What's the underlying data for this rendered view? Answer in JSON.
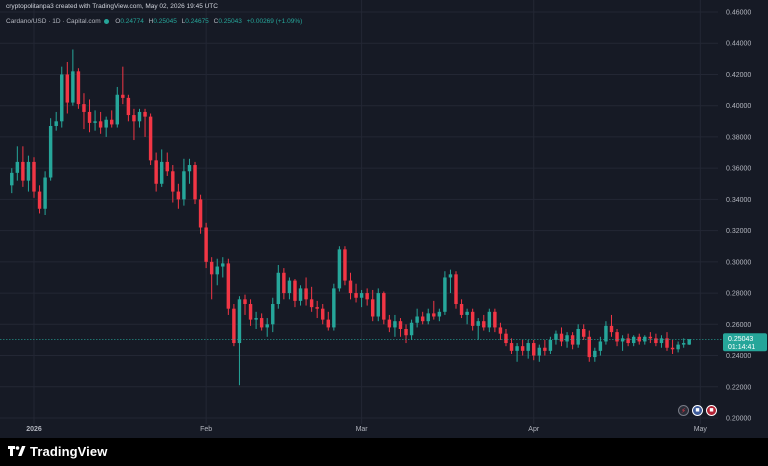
{
  "header": {
    "created_by": "cryptopolitanpa3 created with TradingView.com, May 02, 2026 19:45 UTC"
  },
  "symbol": {
    "name": "Cardano/USD · 1D · Capital.com",
    "open_label": "O",
    "open": "0.24774",
    "high_label": "H",
    "high": "0.25045",
    "low_label": "L",
    "low": "0.24675",
    "close_label": "C",
    "close": "0.25043",
    "change": "+0.00269 (+1.09%)"
  },
  "price_tag": {
    "price": "0.25043",
    "countdown": "01:14:41"
  },
  "footer": {
    "brand": "TradingView"
  },
  "colors": {
    "up": "#26a69a",
    "down": "#f23645",
    "background": "#161a25",
    "grid": "#232734"
  },
  "chart_data": {
    "type": "candlestick",
    "y_axis_labels": [
      "0.46000",
      "0.44000",
      "0.42000",
      "0.40000",
      "0.38000",
      "0.36000",
      "0.34000",
      "0.32000",
      "0.30000",
      "0.28000",
      "0.26000",
      "0.24000",
      "0.22000",
      "0.20000"
    ],
    "ylim": [
      0.2,
      0.46
    ],
    "y_axis_position": "right",
    "x_axis_labels": [
      {
        "label": "2026",
        "bold": true,
        "day": 4
      },
      {
        "label": "Feb",
        "bold": false,
        "day": 35
      },
      {
        "label": "Mar",
        "bold": false,
        "day": 63
      },
      {
        "label": "Apr",
        "bold": false,
        "day": 94
      },
      {
        "label": "May",
        "bold": false,
        "day": 124
      }
    ],
    "grid": true,
    "candles": [
      {
        "o": 0.349,
        "h": 0.36,
        "l": 0.344,
        "c": 0.357
      },
      {
        "o": 0.357,
        "h": 0.374,
        "l": 0.352,
        "c": 0.364
      },
      {
        "o": 0.364,
        "h": 0.374,
        "l": 0.348,
        "c": 0.352
      },
      {
        "o": 0.352,
        "h": 0.368,
        "l": 0.345,
        "c": 0.364
      },
      {
        "o": 0.364,
        "h": 0.367,
        "l": 0.341,
        "c": 0.345
      },
      {
        "o": 0.345,
        "h": 0.349,
        "l": 0.331,
        "c": 0.334
      },
      {
        "o": 0.334,
        "h": 0.358,
        "l": 0.33,
        "c": 0.354
      },
      {
        "o": 0.354,
        "h": 0.392,
        "l": 0.352,
        "c": 0.387
      },
      {
        "o": 0.387,
        "h": 0.396,
        "l": 0.384,
        "c": 0.39
      },
      {
        "o": 0.39,
        "h": 0.425,
        "l": 0.386,
        "c": 0.42
      },
      {
        "o": 0.42,
        "h": 0.428,
        "l": 0.395,
        "c": 0.402
      },
      {
        "o": 0.402,
        "h": 0.436,
        "l": 0.4,
        "c": 0.422
      },
      {
        "o": 0.422,
        "h": 0.424,
        "l": 0.398,
        "c": 0.401
      },
      {
        "o": 0.401,
        "h": 0.408,
        "l": 0.385,
        "c": 0.396
      },
      {
        "o": 0.396,
        "h": 0.404,
        "l": 0.383,
        "c": 0.389
      },
      {
        "o": 0.389,
        "h": 0.397,
        "l": 0.384,
        "c": 0.39
      },
      {
        "o": 0.39,
        "h": 0.396,
        "l": 0.382,
        "c": 0.386
      },
      {
        "o": 0.386,
        "h": 0.393,
        "l": 0.38,
        "c": 0.391
      },
      {
        "o": 0.391,
        "h": 0.397,
        "l": 0.386,
        "c": 0.388
      },
      {
        "o": 0.388,
        "h": 0.412,
        "l": 0.386,
        "c": 0.407
      },
      {
        "o": 0.407,
        "h": 0.425,
        "l": 0.401,
        "c": 0.405
      },
      {
        "o": 0.405,
        "h": 0.407,
        "l": 0.39,
        "c": 0.394
      },
      {
        "o": 0.394,
        "h": 0.398,
        "l": 0.378,
        "c": 0.39
      },
      {
        "o": 0.39,
        "h": 0.398,
        "l": 0.386,
        "c": 0.396
      },
      {
        "o": 0.396,
        "h": 0.398,
        "l": 0.38,
        "c": 0.393
      },
      {
        "o": 0.393,
        "h": 0.395,
        "l": 0.362,
        "c": 0.365
      },
      {
        "o": 0.365,
        "h": 0.37,
        "l": 0.345,
        "c": 0.35
      },
      {
        "o": 0.35,
        "h": 0.372,
        "l": 0.348,
        "c": 0.364
      },
      {
        "o": 0.364,
        "h": 0.37,
        "l": 0.355,
        "c": 0.358
      },
      {
        "o": 0.358,
        "h": 0.362,
        "l": 0.338,
        "c": 0.345
      },
      {
        "o": 0.345,
        "h": 0.35,
        "l": 0.334,
        "c": 0.34
      },
      {
        "o": 0.34,
        "h": 0.366,
        "l": 0.336,
        "c": 0.358
      },
      {
        "o": 0.358,
        "h": 0.366,
        "l": 0.35,
        "c": 0.362
      },
      {
        "o": 0.362,
        "h": 0.364,
        "l": 0.337,
        "c": 0.34
      },
      {
        "o": 0.34,
        "h": 0.343,
        "l": 0.318,
        "c": 0.322
      },
      {
        "o": 0.322,
        "h": 0.325,
        "l": 0.296,
        "c": 0.3
      },
      {
        "o": 0.3,
        "h": 0.303,
        "l": 0.276,
        "c": 0.292
      },
      {
        "o": 0.292,
        "h": 0.302,
        "l": 0.285,
        "c": 0.297
      },
      {
        "o": 0.297,
        "h": 0.303,
        "l": 0.29,
        "c": 0.299
      },
      {
        "o": 0.299,
        "h": 0.302,
        "l": 0.266,
        "c": 0.27
      },
      {
        "o": 0.27,
        "h": 0.273,
        "l": 0.246,
        "c": 0.248
      },
      {
        "o": 0.248,
        "h": 0.278,
        "l": 0.221,
        "c": 0.276
      },
      {
        "o": 0.276,
        "h": 0.279,
        "l": 0.266,
        "c": 0.273
      },
      {
        "o": 0.273,
        "h": 0.276,
        "l": 0.259,
        "c": 0.263
      },
      {
        "o": 0.263,
        "h": 0.268,
        "l": 0.257,
        "c": 0.264
      },
      {
        "o": 0.264,
        "h": 0.267,
        "l": 0.256,
        "c": 0.258
      },
      {
        "o": 0.258,
        "h": 0.264,
        "l": 0.252,
        "c": 0.26
      },
      {
        "o": 0.26,
        "h": 0.277,
        "l": 0.255,
        "c": 0.273
      },
      {
        "o": 0.273,
        "h": 0.298,
        "l": 0.27,
        "c": 0.293
      },
      {
        "o": 0.293,
        "h": 0.296,
        "l": 0.276,
        "c": 0.28
      },
      {
        "o": 0.28,
        "h": 0.29,
        "l": 0.276,
        "c": 0.288
      },
      {
        "o": 0.288,
        "h": 0.289,
        "l": 0.271,
        "c": 0.275
      },
      {
        "o": 0.275,
        "h": 0.285,
        "l": 0.272,
        "c": 0.283
      },
      {
        "o": 0.283,
        "h": 0.29,
        "l": 0.272,
        "c": 0.276
      },
      {
        "o": 0.276,
        "h": 0.284,
        "l": 0.268,
        "c": 0.271
      },
      {
        "o": 0.271,
        "h": 0.275,
        "l": 0.264,
        "c": 0.27
      },
      {
        "o": 0.27,
        "h": 0.273,
        "l": 0.26,
        "c": 0.263
      },
      {
        "o": 0.263,
        "h": 0.268,
        "l": 0.256,
        "c": 0.258
      },
      {
        "o": 0.258,
        "h": 0.286,
        "l": 0.256,
        "c": 0.283
      },
      {
        "o": 0.283,
        "h": 0.31,
        "l": 0.281,
        "c": 0.308
      },
      {
        "o": 0.308,
        "h": 0.31,
        "l": 0.285,
        "c": 0.288
      },
      {
        "o": 0.288,
        "h": 0.293,
        "l": 0.276,
        "c": 0.28
      },
      {
        "o": 0.28,
        "h": 0.286,
        "l": 0.274,
        "c": 0.277
      },
      {
        "o": 0.277,
        "h": 0.282,
        "l": 0.271,
        "c": 0.28
      },
      {
        "o": 0.28,
        "h": 0.283,
        "l": 0.272,
        "c": 0.276
      },
      {
        "o": 0.276,
        "h": 0.282,
        "l": 0.262,
        "c": 0.265
      },
      {
        "o": 0.265,
        "h": 0.283,
        "l": 0.262,
        "c": 0.28
      },
      {
        "o": 0.28,
        "h": 0.281,
        "l": 0.26,
        "c": 0.263
      },
      {
        "o": 0.263,
        "h": 0.266,
        "l": 0.255,
        "c": 0.258
      },
      {
        "o": 0.258,
        "h": 0.266,
        "l": 0.252,
        "c": 0.262
      },
      {
        "o": 0.262,
        "h": 0.264,
        "l": 0.252,
        "c": 0.257
      },
      {
        "o": 0.257,
        "h": 0.26,
        "l": 0.248,
        "c": 0.253
      },
      {
        "o": 0.253,
        "h": 0.263,
        "l": 0.25,
        "c": 0.261
      },
      {
        "o": 0.261,
        "h": 0.27,
        "l": 0.258,
        "c": 0.265
      },
      {
        "o": 0.265,
        "h": 0.268,
        "l": 0.26,
        "c": 0.262
      },
      {
        "o": 0.262,
        "h": 0.27,
        "l": 0.26,
        "c": 0.267
      },
      {
        "o": 0.267,
        "h": 0.275,
        "l": 0.263,
        "c": 0.265
      },
      {
        "o": 0.265,
        "h": 0.27,
        "l": 0.262,
        "c": 0.268
      },
      {
        "o": 0.268,
        "h": 0.294,
        "l": 0.266,
        "c": 0.29
      },
      {
        "o": 0.29,
        "h": 0.295,
        "l": 0.28,
        "c": 0.292
      },
      {
        "o": 0.292,
        "h": 0.294,
        "l": 0.27,
        "c": 0.273
      },
      {
        "o": 0.273,
        "h": 0.276,
        "l": 0.264,
        "c": 0.266
      },
      {
        "o": 0.266,
        "h": 0.27,
        "l": 0.26,
        "c": 0.268
      },
      {
        "o": 0.268,
        "h": 0.27,
        "l": 0.256,
        "c": 0.259
      },
      {
        "o": 0.259,
        "h": 0.264,
        "l": 0.25,
        "c": 0.262
      },
      {
        "o": 0.262,
        "h": 0.266,
        "l": 0.256,
        "c": 0.258
      },
      {
        "o": 0.258,
        "h": 0.27,
        "l": 0.255,
        "c": 0.268
      },
      {
        "o": 0.268,
        "h": 0.27,
        "l": 0.255,
        "c": 0.258
      },
      {
        "o": 0.258,
        "h": 0.261,
        "l": 0.25,
        "c": 0.254
      },
      {
        "o": 0.254,
        "h": 0.257,
        "l": 0.246,
        "c": 0.248
      },
      {
        "o": 0.248,
        "h": 0.251,
        "l": 0.241,
        "c": 0.243
      },
      {
        "o": 0.243,
        "h": 0.248,
        "l": 0.236,
        "c": 0.246
      },
      {
        "o": 0.246,
        "h": 0.25,
        "l": 0.24,
        "c": 0.243
      },
      {
        "o": 0.243,
        "h": 0.25,
        "l": 0.238,
        "c": 0.248
      },
      {
        "o": 0.248,
        "h": 0.25,
        "l": 0.237,
        "c": 0.24
      },
      {
        "o": 0.24,
        "h": 0.247,
        "l": 0.236,
        "c": 0.245
      },
      {
        "o": 0.245,
        "h": 0.25,
        "l": 0.24,
        "c": 0.243
      },
      {
        "o": 0.243,
        "h": 0.252,
        "l": 0.241,
        "c": 0.25
      },
      {
        "o": 0.25,
        "h": 0.256,
        "l": 0.247,
        "c": 0.254
      },
      {
        "o": 0.254,
        "h": 0.258,
        "l": 0.246,
        "c": 0.249
      },
      {
        "o": 0.249,
        "h": 0.255,
        "l": 0.245,
        "c": 0.253
      },
      {
        "o": 0.253,
        "h": 0.255,
        "l": 0.244,
        "c": 0.247
      },
      {
        "o": 0.247,
        "h": 0.26,
        "l": 0.245,
        "c": 0.257
      },
      {
        "o": 0.257,
        "h": 0.26,
        "l": 0.25,
        "c": 0.252
      },
      {
        "o": 0.252,
        "h": 0.256,
        "l": 0.236,
        "c": 0.239
      },
      {
        "o": 0.239,
        "h": 0.245,
        "l": 0.236,
        "c": 0.243
      },
      {
        "o": 0.243,
        "h": 0.252,
        "l": 0.24,
        "c": 0.249
      },
      {
        "o": 0.249,
        "h": 0.262,
        "l": 0.247,
        "c": 0.259
      },
      {
        "o": 0.259,
        "h": 0.266,
        "l": 0.252,
        "c": 0.255
      },
      {
        "o": 0.255,
        "h": 0.257,
        "l": 0.246,
        "c": 0.249
      },
      {
        "o": 0.249,
        "h": 0.253,
        "l": 0.243,
        "c": 0.251
      },
      {
        "o": 0.251,
        "h": 0.254,
        "l": 0.246,
        "c": 0.248
      },
      {
        "o": 0.248,
        "h": 0.253,
        "l": 0.246,
        "c": 0.252
      },
      {
        "o": 0.252,
        "h": 0.254,
        "l": 0.247,
        "c": 0.249
      },
      {
        "o": 0.249,
        "h": 0.253,
        "l": 0.247,
        "c": 0.252
      },
      {
        "o": 0.252,
        "h": 0.255,
        "l": 0.248,
        "c": 0.251
      },
      {
        "o": 0.251,
        "h": 0.254,
        "l": 0.246,
        "c": 0.248
      },
      {
        "o": 0.248,
        "h": 0.253,
        "l": 0.245,
        "c": 0.251
      },
      {
        "o": 0.251,
        "h": 0.255,
        "l": 0.243,
        "c": 0.245
      },
      {
        "o": 0.245,
        "h": 0.25,
        "l": 0.241,
        "c": 0.244
      },
      {
        "o": 0.244,
        "h": 0.249,
        "l": 0.242,
        "c": 0.247
      },
      {
        "o": 0.247,
        "h": 0.251,
        "l": 0.245,
        "c": 0.248
      },
      {
        "o": 0.247,
        "h": 0.2505,
        "l": 0.2468,
        "c": 0.2504
      }
    ]
  }
}
